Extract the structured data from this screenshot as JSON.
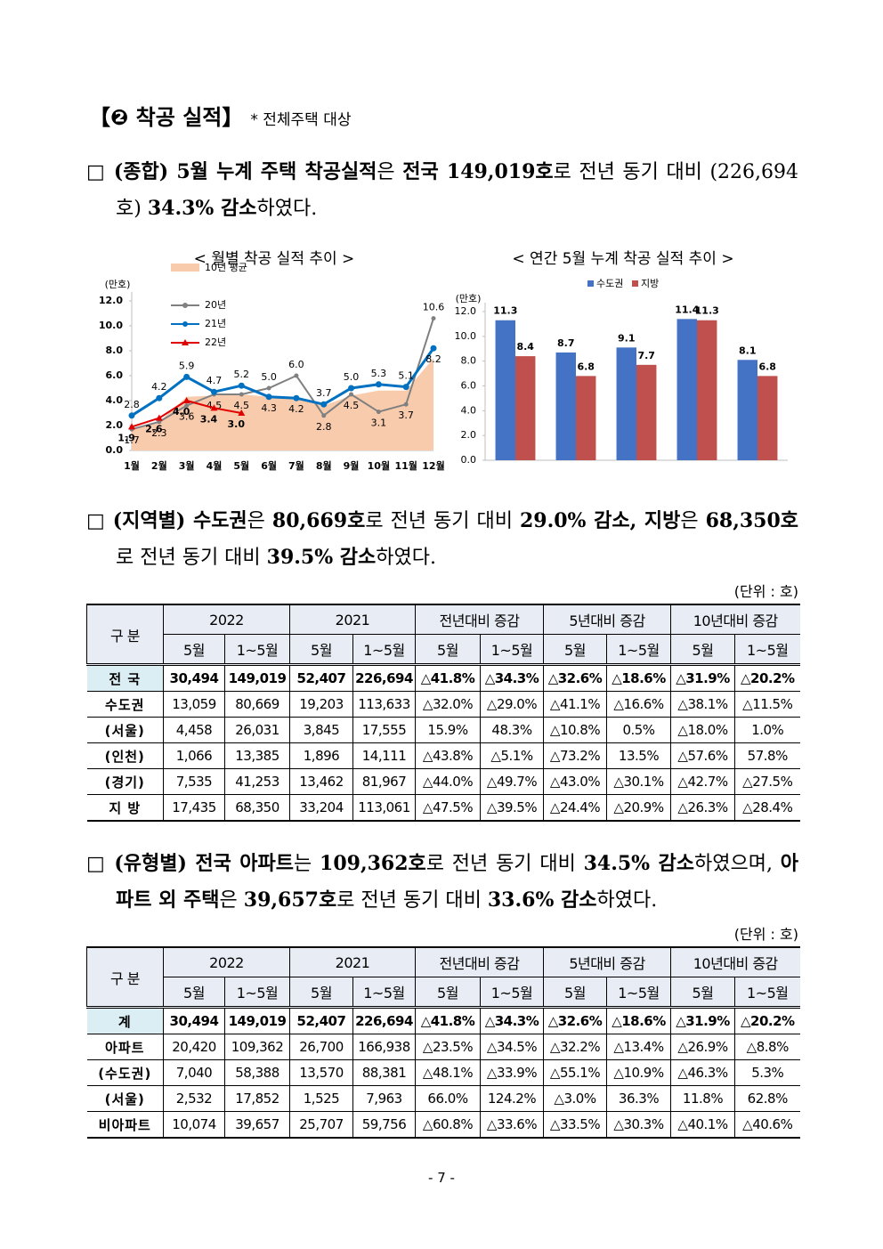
{
  "heading": {
    "title": "【❷ 착공 실적】",
    "note": "* 전체주택 대상"
  },
  "paragraphs": [
    {
      "runs": [
        {
          "text": "(종합) 5월 누계 주택 착공실적",
          "bold": true
        },
        {
          "text": "은 ",
          "bold": false
        },
        {
          "text": "전국 149,019호",
          "bold": true
        },
        {
          "text": "로 전년 동기 대비 (226,694호) ",
          "bold": false
        },
        {
          "text": "34.3% 감소",
          "bold": true
        },
        {
          "text": "하였다.",
          "bold": false
        }
      ]
    },
    {
      "runs": [
        {
          "text": "(지역별) 수도권",
          "bold": true
        },
        {
          "text": "은 ",
          "bold": false
        },
        {
          "text": "80,669호",
          "bold": true
        },
        {
          "text": "로 전년 동기 대비 ",
          "bold": false
        },
        {
          "text": "29.0% 감소, 지방",
          "bold": true
        },
        {
          "text": "은 ",
          "bold": false
        },
        {
          "text": "68,350호",
          "bold": true
        },
        {
          "text": "로 전년 동기 대비 ",
          "bold": false
        },
        {
          "text": "39.5% 감소",
          "bold": true
        },
        {
          "text": "하였다.",
          "bold": false
        }
      ]
    },
    {
      "runs": [
        {
          "text": "(유형별) 전국 아파트",
          "bold": true
        },
        {
          "text": "는 ",
          "bold": false
        },
        {
          "text": "109,362호",
          "bold": true
        },
        {
          "text": "로 전년 동기 대비 ",
          "bold": false
        },
        {
          "text": "34.5% 감소",
          "bold": true
        },
        {
          "text": "하였으며, ",
          "bold": false
        },
        {
          "text": "아파트 외 주택",
          "bold": true
        },
        {
          "text": "은 ",
          "bold": false
        },
        {
          "text": "39,657호",
          "bold": true
        },
        {
          "text": "로 전년 동기 대비 ",
          "bold": false
        },
        {
          "text": "33.6% 감소",
          "bold": true
        },
        {
          "text": "하였다.",
          "bold": false
        }
      ]
    }
  ],
  "chart_data": [
    {
      "type": "line",
      "title": "< 월별 착공 실적 추이 >",
      "y_label": "(만호)",
      "categories": [
        "1월",
        "2월",
        "3월",
        "4월",
        "5월",
        "6월",
        "7월",
        "8월",
        "9월",
        "10월",
        "11월",
        "12월"
      ],
      "ylim": [
        0,
        12
      ],
      "yticks": [
        {
          "value": 0,
          "label": "0.0"
        },
        {
          "value": 2,
          "label": "2.0"
        },
        {
          "value": 4,
          "label": "4.0"
        },
        {
          "value": 6,
          "label": "6.0"
        },
        {
          "value": 8,
          "label": "8.0"
        },
        {
          "value": 10,
          "label": "10.0"
        },
        {
          "value": 12,
          "label": "12.0"
        }
      ],
      "grid": false,
      "legend": "upper left",
      "series": [
        {
          "name": "10년 평균",
          "style": "area",
          "color": "#f8cbad",
          "values": [
            1.8,
            2.3,
            4.3,
            4.4,
            4.5,
            4.3,
            4.2,
            3.6,
            4.4,
            4.8,
            4.8,
            7.4
          ]
        },
        {
          "name": "20년",
          "style": "line",
          "color": "#808080",
          "values": [
            1.7,
            2.3,
            3.6,
            4.5,
            4.5,
            5.0,
            6.0,
            2.8,
            4.5,
            3.1,
            3.7,
            10.6
          ],
          "value_labels": [
            "1.7",
            "2.3",
            "3.6",
            "4.5",
            "4.5",
            "5.0",
            "6.0",
            "2.8",
            "4.5",
            "3.1",
            "3.7",
            "10.6"
          ]
        },
        {
          "name": "21년",
          "style": "line",
          "color": "#0070c0",
          "values": [
            2.8,
            4.2,
            5.9,
            4.7,
            5.2,
            4.3,
            4.2,
            3.7,
            5.0,
            5.3,
            5.1,
            8.2
          ],
          "value_labels": [
            "2.8",
            "4.2",
            "5.9",
            "4.7",
            "5.2",
            "4.3",
            "4.2",
            "3.7",
            "5.0",
            "5.3",
            "5.1",
            "8.2"
          ]
        },
        {
          "name": "22년",
          "style": "line",
          "color": "#e00000",
          "values": [
            1.9,
            2.6,
            4.0,
            3.4,
            3.0,
            null,
            null,
            null,
            null,
            null,
            null,
            null
          ],
          "value_labels": [
            "1.9",
            "2.6",
            "4.0",
            "3.4",
            "3.0",
            null,
            null,
            null,
            null,
            null,
            null,
            null
          ]
        }
      ]
    },
    {
      "type": "bar",
      "title": "< 연간 5월 누계 착공 실적 추이 >",
      "y_label": "(만호)",
      "categories": [
        null,
        null,
        null,
        null,
        null
      ],
      "ylim": [
        0,
        12
      ],
      "yticks": [
        {
          "value": 0,
          "label": "0.0"
        },
        {
          "value": 2,
          "label": "2.0"
        },
        {
          "value": 4,
          "label": "4.0"
        },
        {
          "value": 6,
          "label": "6.0"
        },
        {
          "value": 8,
          "label": "8.0"
        },
        {
          "value": 10,
          "label": "10.0"
        },
        {
          "value": 12,
          "label": "12.0"
        }
      ],
      "grid": false,
      "legend": "upper center",
      "series": [
        {
          "name": "수도권",
          "color": "#4472c4",
          "values": [
            11.3,
            8.7,
            9.1,
            11.4,
            8.1
          ]
        },
        {
          "name": "지방",
          "color": "#c0504d",
          "values": [
            8.4,
            6.8,
            7.7,
            11.3,
            6.8
          ]
        }
      ]
    }
  ],
  "tables": [
    {
      "unit": "(단위 : 호)",
      "corner": "구 분",
      "header_groups": [
        "2022",
        "2021",
        "전년대비 증감",
        "5년대비 증감",
        "10년대비 증감"
      ],
      "sub_headers": [
        "5월",
        "1~5월",
        "5월",
        "1~5월",
        "5월",
        "1~5월",
        "5월",
        "1~5월",
        "5월",
        "1~5월"
      ],
      "rows": [
        [
          "전 국",
          "30,494",
          "149,019",
          "52,407",
          "226,694",
          "△41.8%",
          "△34.3%",
          "△32.6%",
          "△18.6%",
          "△31.9%",
          "△20.2%"
        ],
        [
          "수도권",
          "13,059",
          "80,669",
          "19,203",
          "113,633",
          "△32.0%",
          "△29.0%",
          "△41.1%",
          "△16.6%",
          "△38.1%",
          "△11.5%"
        ],
        [
          "(서울)",
          "4,458",
          "26,031",
          "3,845",
          "17,555",
          "15.9%",
          "48.3%",
          "△10.8%",
          "0.5%",
          "△18.0%",
          "1.0%"
        ],
        [
          "(인천)",
          "1,066",
          "13,385",
          "1,896",
          "14,111",
          "△43.8%",
          "△5.1%",
          "△73.2%",
          "13.5%",
          "△57.6%",
          "57.8%"
        ],
        [
          "(경기)",
          "7,535",
          "41,253",
          "13,462",
          "81,967",
          "△44.0%",
          "△49.7%",
          "△43.0%",
          "△30.1%",
          "△42.7%",
          "△27.5%"
        ],
        [
          "지 방",
          "17,435",
          "68,350",
          "33,204",
          "113,061",
          "△47.5%",
          "△39.5%",
          "△24.4%",
          "△20.9%",
          "△26.3%",
          "△28.4%"
        ]
      ]
    },
    {
      "unit": "(단위 : 호)",
      "corner": "구 분",
      "header_groups": [
        "2022",
        "2021",
        "전년대비 증감",
        "5년대비 증감",
        "10년대비 증감"
      ],
      "sub_headers": [
        "5월",
        "1~5월",
        "5월",
        "1~5월",
        "5월",
        "1~5월",
        "5월",
        "1~5월",
        "5월",
        "1~5월"
      ],
      "rows": [
        [
          "계",
          "30,494",
          "149,019",
          "52,407",
          "226,694",
          "△41.8%",
          "△34.3%",
          "△32.6%",
          "△18.6%",
          "△31.9%",
          "△20.2%"
        ],
        [
          "아파트",
          "20,420",
          "109,362",
          "26,700",
          "166,938",
          "△23.5%",
          "△34.5%",
          "△32.2%",
          "△13.4%",
          "△26.9%",
          "△8.8%"
        ],
        [
          "(수도권)",
          "7,040",
          "58,388",
          "13,570",
          "88,381",
          "△48.1%",
          "△33.9%",
          "△55.1%",
          "△10.9%",
          "△46.3%",
          "5.3%"
        ],
        [
          "(서울)",
          "2,532",
          "17,852",
          "1,525",
          "7,963",
          "66.0%",
          "124.2%",
          "△3.0%",
          "36.3%",
          "11.8%",
          "62.8%"
        ],
        [
          "비아파트",
          "10,074",
          "39,657",
          "25,707",
          "59,756",
          "△60.8%",
          "△33.6%",
          "△33.5%",
          "△30.3%",
          "△40.1%",
          "△40.6%"
        ]
      ]
    }
  ],
  "page_number": "- 7 -"
}
